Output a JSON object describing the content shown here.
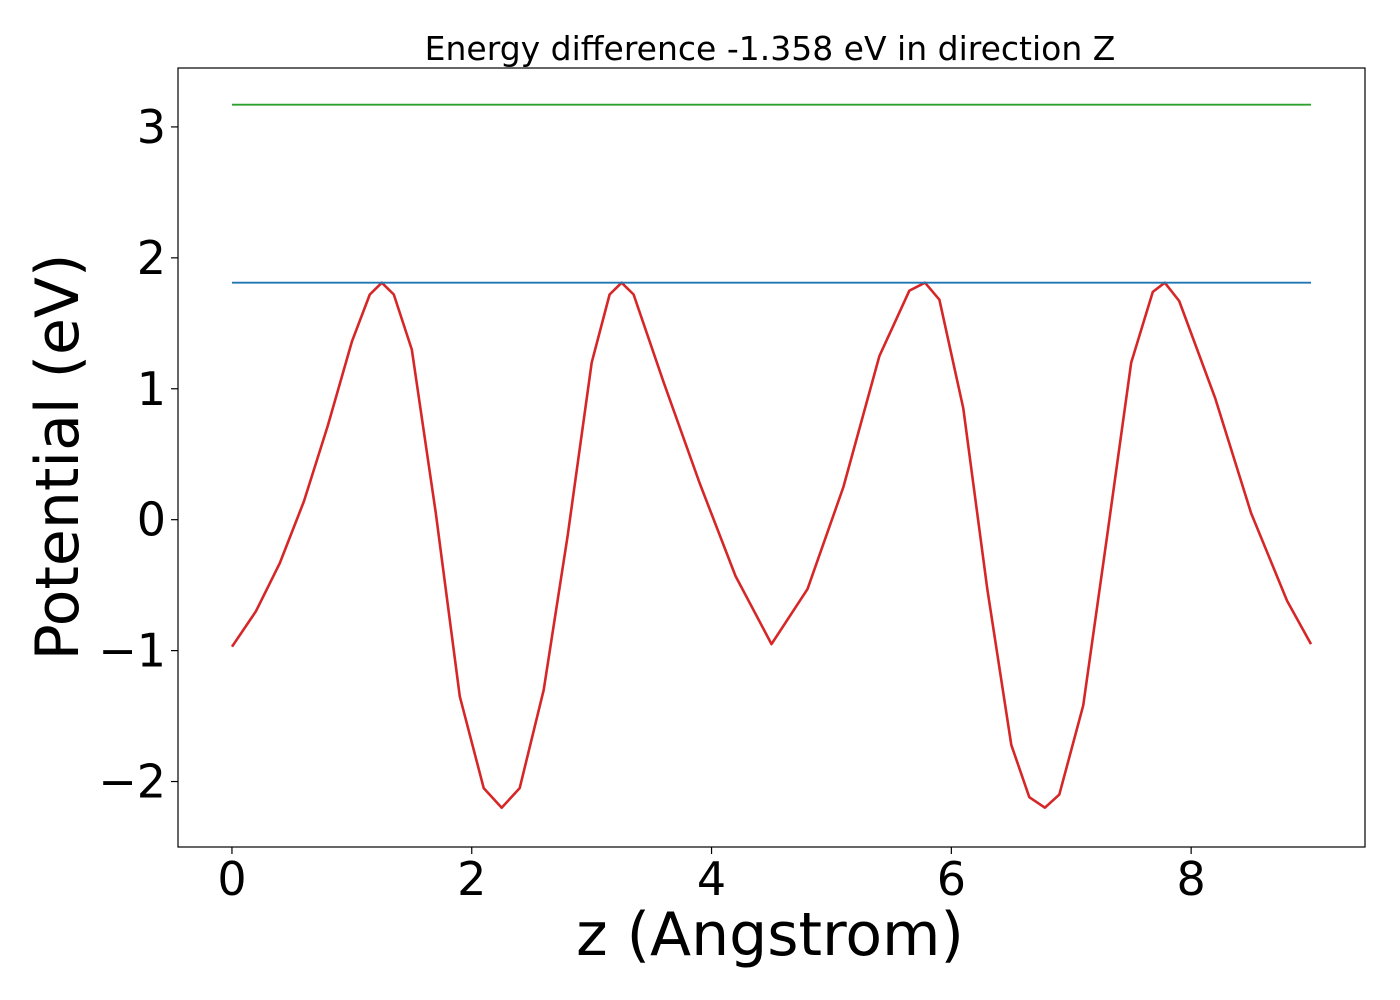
{
  "chart_data": {
    "type": "line",
    "title": "Energy difference -1.358 eV in direction Z",
    "xlabel": "z (Angstrom)",
    "ylabel": "Potential (eV)",
    "xlim": [
      -0.45,
      9.45
    ],
    "ylim": [
      -2.5,
      3.45
    ],
    "x_ticks": [
      0,
      2,
      4,
      6,
      8
    ],
    "x_tick_labels": [
      "0",
      "2",
      "4",
      "6",
      "8"
    ],
    "y_ticks": [
      -2,
      -1,
      0,
      1,
      2,
      3
    ],
    "y_tick_labels": [
      "−2",
      "−1",
      "0",
      "1",
      "2",
      "3"
    ],
    "grid": false,
    "series": [
      {
        "color": "#d62728",
        "x": [
          0.0,
          0.2,
          0.4,
          0.6,
          0.8,
          1.0,
          1.15,
          1.25,
          1.35,
          1.5,
          1.7,
          1.9,
          2.1,
          2.25,
          2.4,
          2.6,
          2.8,
          3.0,
          3.15,
          3.25,
          3.35,
          3.6,
          3.9,
          4.2,
          4.5,
          4.8,
          5.1,
          5.4,
          5.65,
          5.78,
          5.9,
          6.1,
          6.3,
          6.5,
          6.65,
          6.78,
          6.9,
          7.1,
          7.3,
          7.5,
          7.68,
          7.78,
          7.9,
          8.2,
          8.5,
          8.8,
          9.0
        ],
        "y": [
          -0.97,
          -0.7,
          -0.33,
          0.14,
          0.72,
          1.36,
          1.72,
          1.81,
          1.72,
          1.3,
          0.05,
          -1.35,
          -2.05,
          -2.2,
          -2.05,
          -1.3,
          -0.12,
          1.2,
          1.72,
          1.81,
          1.72,
          1.05,
          0.28,
          -0.43,
          -0.95,
          -0.53,
          0.25,
          1.25,
          1.75,
          1.81,
          1.68,
          0.85,
          -0.53,
          -1.72,
          -2.12,
          -2.2,
          -2.1,
          -1.42,
          -0.12,
          1.2,
          1.74,
          1.81,
          1.67,
          0.93,
          0.05,
          -0.62,
          -0.95
        ]
      },
      {
        "color": "#1f77b4",
        "x": [
          0.0,
          9.0
        ],
        "y": [
          1.81,
          1.81
        ]
      },
      {
        "color": "#2ca02c",
        "x": [
          0.0,
          9.0
        ],
        "y": [
          3.17,
          3.17
        ]
      }
    ]
  }
}
